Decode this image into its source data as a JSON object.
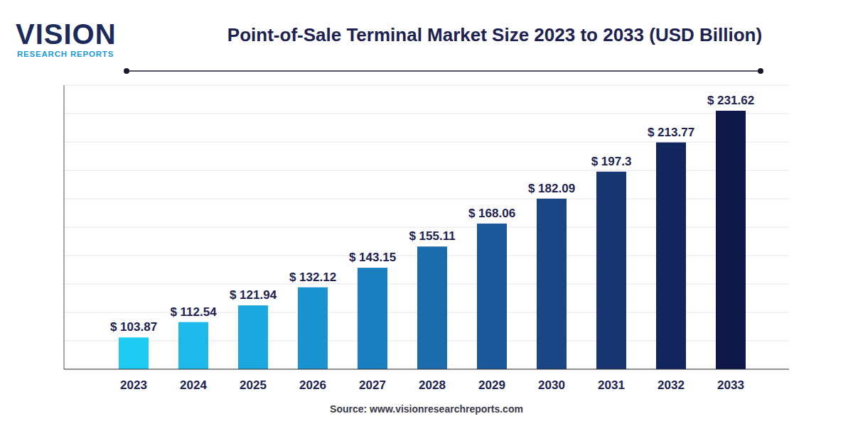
{
  "chart_data": {
    "type": "bar",
    "title": "Point-of-Sale Terminal Market Size 2023 to 2033 (USD Billion)",
    "annotations": [
      "VISION",
      "RESEARCH REPORTS"
    ],
    "source": "Source: www.visionresearchreports.com",
    "categories": [
      "2023",
      "2024",
      "2025",
      "2026",
      "2027",
      "2028",
      "2029",
      "2030",
      "2031",
      "2032",
      "2033"
    ],
    "values": [
      103.87,
      112.54,
      121.94,
      132.12,
      143.15,
      155.11,
      168.06,
      182.09,
      197.3,
      213.77,
      231.62
    ],
    "value_labels": [
      "$ 103.87",
      "$ 112.54",
      "$ 121.94",
      "$ 132.12",
      "$ 143.15",
      "$ 155.11",
      "$ 168.06",
      "$ 182.09",
      "$ 197.3",
      "$ 213.77",
      "$ 231.62"
    ],
    "colors": [
      "#1ecbf2",
      "#1cb9ea",
      "#1aa6de",
      "#1a92cf",
      "#1a7fc0",
      "#1b6bad",
      "#1b589b",
      "#1a4686",
      "#173571",
      "#13255d",
      "#0d1848"
    ],
    "ylim": [
      86,
      246
    ],
    "yticks": [
      86,
      102,
      118,
      134,
      150,
      166,
      182,
      198,
      214,
      230,
      246
    ],
    "grid": true,
    "data_labels": true,
    "tick_labels": "x"
  }
}
